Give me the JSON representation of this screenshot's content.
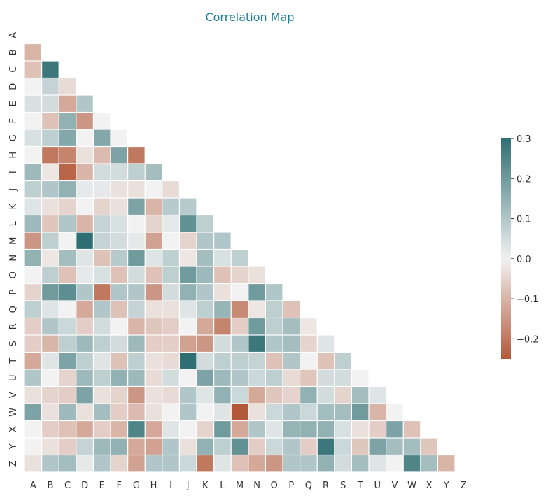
{
  "chart_data": {
    "type": "heatmap",
    "title": "Correlation Map",
    "labels": [
      "A",
      "B",
      "C",
      "D",
      "E",
      "F",
      "G",
      "H",
      "I",
      "J",
      "K",
      "L",
      "M",
      "N",
      "O",
      "P",
      "Q",
      "R",
      "S",
      "T",
      "U",
      "V",
      "W",
      "X",
      "Y",
      "Z"
    ],
    "mask": "upper triangle including diagonal",
    "values": [
      [],
      [
        -0.1
      ],
      [
        -0.08,
        0.28
      ],
      [
        0.0,
        0.07,
        -0.04
      ],
      [
        0.04,
        0.05,
        -0.12,
        0.1
      ],
      [
        0.0,
        -0.08,
        0.15,
        -0.15,
        0.0
      ],
      [
        0.04,
        0.08,
        0.17,
        0.0,
        0.17,
        0.0
      ],
      [
        0.0,
        -0.2,
        -0.18,
        -0.03,
        -0.09,
        0.18,
        -0.2
      ],
      [
        0.13,
        -0.02,
        -0.23,
        -0.1,
        0.05,
        0.05,
        0.08,
        0.12
      ],
      [
        0.08,
        0.1,
        0.15,
        0.02,
        0.02,
        -0.03,
        -0.03,
        0.0,
        -0.04
      ],
      [
        0.03,
        -0.03,
        -0.05,
        0.0,
        -0.05,
        -0.03,
        0.18,
        -0.1,
        0.09,
        0.09
      ],
      [
        0.13,
        -0.07,
        0.1,
        -0.1,
        0.07,
        0.04,
        0.0,
        -0.05,
        0.02,
        0.22,
        0.08
      ],
      [
        -0.15,
        0.08,
        0.0,
        0.3,
        0.07,
        0.05,
        0.02,
        -0.13,
        0.0,
        -0.05,
        0.1,
        0.1
      ],
      [
        0.15,
        -0.02,
        0.12,
        0.03,
        -0.08,
        0.09,
        0.2,
        0.03,
        0.08,
        -0.02,
        0.12,
        0.04,
        0.08
      ],
      [
        0.0,
        0.08,
        -0.08,
        0.02,
        0.04,
        -0.08,
        0.05,
        -0.08,
        0.08,
        0.2,
        0.13,
        -0.08,
        -0.05,
        -0.03
      ],
      [
        -0.05,
        0.2,
        0.23,
        0.1,
        -0.2,
        0.1,
        0.1,
        -0.15,
        0.05,
        0.15,
        0.1,
        -0.03,
        0.0,
        0.2,
        0.1
      ],
      [
        0.08,
        0.03,
        0.0,
        -0.12,
        0.1,
        -0.08,
        0.07,
        -0.03,
        -0.03,
        0.03,
        0.08,
        0.14,
        -0.17,
        -0.02,
        0.08,
        -0.08
      ],
      [
        -0.06,
        0.1,
        0.06,
        -0.06,
        0.05,
        0.0,
        -0.1,
        -0.07,
        -0.06,
        0.0,
        -0.12,
        -0.18,
        -0.06,
        0.2,
        0.08,
        0.12,
        -0.02
      ],
      [
        -0.06,
        -0.1,
        0.08,
        0.13,
        0.08,
        0.05,
        0.13,
        -0.06,
        -0.06,
        -0.13,
        -0.15,
        0.05,
        0.1,
        0.28,
        0.1,
        0.12,
        -0.05,
        0.03
      ],
      [
        -0.12,
        0.03,
        0.18,
        0.08,
        0.03,
        -0.08,
        0.08,
        -0.03,
        -0.04,
        0.3,
        0.05,
        0.08,
        0.08,
        0.07,
        -0.08,
        0.1,
        0.0,
        -0.08,
        0.08
      ],
      [
        0.1,
        0.0,
        -0.05,
        0.13,
        0.08,
        0.15,
        0.13,
        -0.04,
        0.05,
        0.0,
        0.18,
        0.13,
        0.1,
        0.06,
        0.08,
        -0.04,
        -0.07,
        0.05,
        0.05,
        0.0
      ],
      [
        -0.03,
        -0.05,
        -0.06,
        0.18,
        -0.03,
        -0.05,
        -0.15,
        -0.03,
        -0.04,
        0.1,
        0.03,
        0.15,
        0.06,
        -0.12,
        -0.07,
        -0.05,
        0.15,
        0.05,
        -0.05,
        0.12,
        0.03
      ],
      [
        0.18,
        -0.03,
        0.13,
        -0.03,
        0.12,
        -0.06,
        -0.09,
        -0.03,
        0.0,
        0.1,
        0.0,
        0.03,
        -0.25,
        -0.03,
        0.06,
        0.1,
        0.06,
        0.12,
        0.12,
        0.2,
        -0.1,
        0.0
      ],
      [
        0.0,
        -0.06,
        -0.08,
        -0.12,
        -0.06,
        -0.1,
        0.25,
        -0.12,
        0.03,
        0.0,
        -0.05,
        0.2,
        -0.12,
        0.1,
        0.03,
        0.14,
        0.15,
        0.15,
        0.04,
        -0.03,
        -0.06,
        0.18,
        -0.08
      ],
      [
        0.0,
        -0.03,
        -0.06,
        0.07,
        0.13,
        0.15,
        -0.12,
        -0.13,
        0.1,
        -0.03,
        0.15,
        0.08,
        0.22,
        -0.06,
        0.06,
        0.1,
        -0.06,
        0.28,
        0.06,
        -0.07,
        0.18,
        0.12,
        0.12,
        -0.07
      ],
      [
        -0.03,
        0.1,
        0.12,
        0.02,
        0.1,
        -0.05,
        -0.13,
        0.1,
        0.1,
        0.06,
        -0.2,
        0.03,
        -0.08,
        -0.12,
        -0.15,
        0.1,
        0.1,
        0.15,
        0.05,
        0.12,
        0.03,
        0.0,
        0.25,
        0.12,
        -0.1
      ]
    ],
    "colorbar": {
      "range": [
        -0.25,
        0.3
      ],
      "ticks": [
        0.3,
        0.2,
        0.1,
        0.0,
        -0.1,
        -0.2
      ],
      "tick_labels": [
        "0.3",
        "0.2",
        "0.1",
        "0.0",
        "−0.1",
        "−0.2"
      ]
    },
    "colors": {
      "negative": "#b3593a",
      "center": "#f2f2f2",
      "positive": "#2f6f73",
      "title": "#1f7f99"
    }
  }
}
